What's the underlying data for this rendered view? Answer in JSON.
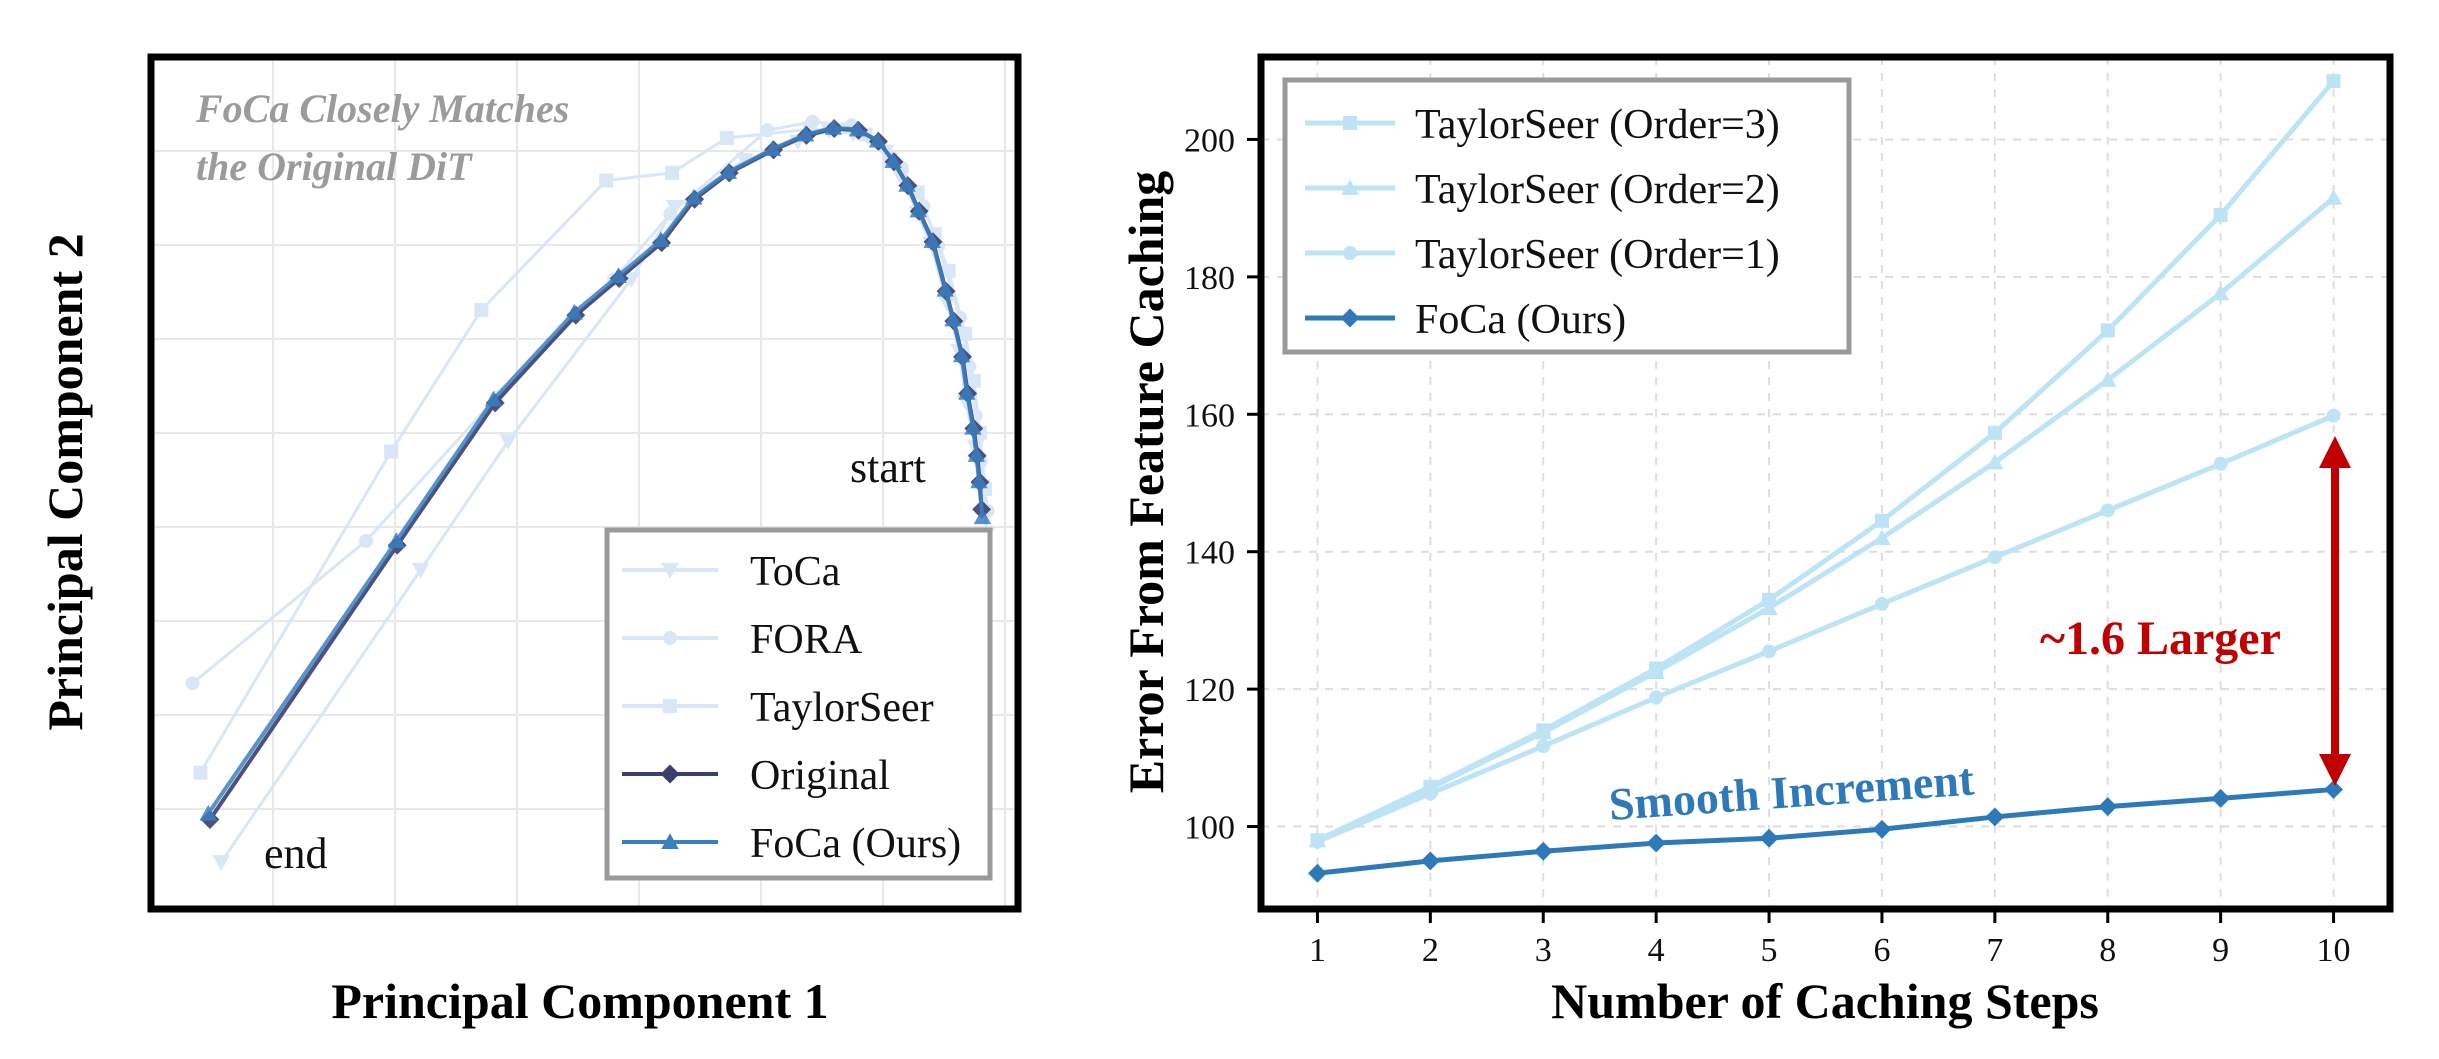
{
  "chart_data": [
    {
      "type": "line",
      "xlabel": "Principal Component 1",
      "ylabel": "Principal Component 2",
      "annotation": [
        "FoCa Closely Matches",
        "the Original DiT"
      ],
      "labels": {
        "start": "start",
        "end": "end"
      },
      "grid": true,
      "legend": "bottom-right",
      "xlim": [
        0,
        100
      ],
      "ylim": [
        0,
        100
      ],
      "series": [
        {
          "name": "ToCa",
          "marker": "triangle-down",
          "color": "#d9e6f5",
          "x": [
            8.1,
            31.1,
            41.2,
            55.4,
            60.4,
            68.5,
            74.6,
            78.2,
            81.0,
            84.7,
            86.5,
            88.4,
            89.9,
            91.8,
            93.2,
            94.0,
            95.1,
            95.9,
            96.4
          ],
          "y": [
            5.5,
            39.8,
            54.9,
            73.9,
            82.4,
            87.9,
            90.1,
            91.4,
            91.0,
            88.9,
            85.9,
            81.7,
            78.1,
            71.2,
            65.5,
            59.5,
            54.2,
            49.6,
            44.0
          ]
        },
        {
          "name": "FORA",
          "marker": "circle",
          "color": "#d9e6f5",
          "x": [
            4.8,
            24.8,
            39.8,
            53.4,
            59.9,
            71.1,
            76.3,
            80.8,
            84.1,
            86.6,
            89.1,
            90.8,
            93.3,
            94.4,
            95.1,
            95.7,
            96.5
          ],
          "y": [
            26.5,
            43.2,
            60.0,
            73.9,
            81.6,
            91.4,
            92.4,
            92.0,
            89.8,
            87.0,
            82.5,
            77.8,
            69.4,
            63.7,
            57.9,
            52.5,
            46.7
          ]
        },
        {
          "name": "TaylorSeer",
          "marker": "square",
          "color": "#d9e6f5",
          "x": [
            5.7,
            27.7,
            38.1,
            52.5,
            60.1,
            66.4,
            76.0,
            82.4,
            85.3,
            88.4,
            90.4,
            92.0,
            93.9,
            94.9,
            95.6,
            96.2
          ],
          "y": [
            16.0,
            53.7,
            70.3,
            85.5,
            86.4,
            90.5,
            91.5,
            90.9,
            88.0,
            84.1,
            79.2,
            74.9,
            67.5,
            62.0,
            55.9,
            49.3
          ]
        },
        {
          "name": "Original",
          "marker": "diamond",
          "color": "#3a3f6e",
          "x": [
            6.8,
            28.4,
            39.7,
            49.0,
            54.0,
            58.9,
            62.7,
            66.7,
            71.8,
            75.6,
            78.8,
            81.6,
            83.9,
            85.7,
            87.3,
            88.6,
            90.2,
            91.7,
            92.6,
            93.6,
            94.2,
            94.9,
            95.3,
            95.6,
            95.8
          ],
          "y": [
            10.5,
            42.7,
            59.4,
            69.7,
            74.0,
            78.2,
            83.3,
            86.4,
            89.1,
            90.8,
            91.6,
            91.4,
            90.1,
            87.7,
            84.9,
            81.9,
            78.3,
            72.5,
            69.0,
            64.8,
            60.5,
            56.4,
            53.2,
            50.1,
            46.9
          ]
        },
        {
          "name": "FoCa (Ours)",
          "marker": "triangle-up",
          "color": "#3a7fc0",
          "x": [
            6.6,
            28.3,
            39.5,
            48.8,
            53.9,
            58.8,
            62.6,
            66.6,
            71.7,
            75.5,
            78.7,
            81.5,
            83.8,
            85.6,
            87.2,
            88.5,
            90.1,
            91.6,
            92.5,
            93.5,
            94.1,
            94.8,
            95.2,
            95.5,
            95.9
          ],
          "y": [
            11.2,
            43.2,
            59.8,
            70.0,
            74.3,
            78.5,
            83.5,
            86.5,
            89.2,
            90.9,
            91.7,
            91.5,
            90.2,
            87.8,
            85.0,
            82.0,
            78.4,
            72.7,
            69.2,
            65.0,
            60.6,
            56.5,
            53.3,
            50.2,
            46.0
          ]
        }
      ]
    },
    {
      "type": "line",
      "xlabel": "Number of Caching Steps",
      "ylabel": "Error From Feature Caching",
      "x": [
        1,
        2,
        3,
        4,
        5,
        6,
        7,
        8,
        9,
        10
      ],
      "xticks": [
        "1",
        "2",
        "3",
        "4",
        "5",
        "6",
        "7",
        "8",
        "9",
        "10"
      ],
      "yticks": [
        "100",
        "120",
        "140",
        "160",
        "180",
        "200"
      ],
      "xlim": [
        0.5,
        10.5
      ],
      "ylim": [
        88,
        212
      ],
      "grid": true,
      "legend": "top-left",
      "series": [
        {
          "name": "TaylorSeer (Order=3)",
          "marker": "square",
          "color": "#bde4f5",
          "values": [
            98.0,
            105.8,
            114.0,
            123.0,
            133.0,
            144.5,
            157.3,
            172.2,
            189.0,
            208.5
          ]
        },
        {
          "name": "TaylorSeer (Order=2)",
          "marker": "triangle-up",
          "color": "#bde4f5",
          "values": [
            98.0,
            105.6,
            113.7,
            122.5,
            131.8,
            142.0,
            153.0,
            165.0,
            177.6,
            191.5
          ]
        },
        {
          "name": "TaylorSeer (Order=1)",
          "marker": "circle",
          "color": "#bde4f5",
          "values": [
            97.8,
            104.8,
            111.7,
            118.8,
            125.5,
            132.4,
            139.2,
            146.0,
            152.8,
            159.8
          ]
        },
        {
          "name": "FoCa (Ours)",
          "marker": "diamond",
          "color": "#2e7ab8",
          "values": [
            93.2,
            95.0,
            96.4,
            97.6,
            98.3,
            99.6,
            101.4,
            102.9,
            104.1,
            105.4
          ]
        }
      ],
      "annotations": [
        {
          "text": "~1.6 Larger",
          "color": "#c00000"
        },
        {
          "text": "Smooth Increment",
          "color": "#2e7ab8"
        }
      ]
    }
  ]
}
